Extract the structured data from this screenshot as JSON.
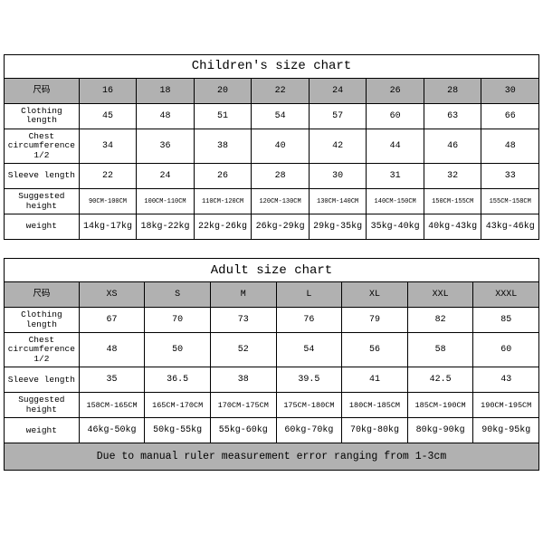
{
  "children": {
    "title": "Children's size chart",
    "row_headers": [
      "尺码",
      "Clothing length",
      "Chest circumference 1/2",
      "Sleeve length",
      "Suggested height",
      "weight"
    ],
    "sizes": [
      "16",
      "18",
      "20",
      "22",
      "24",
      "26",
      "28",
      "30"
    ],
    "clothing_length": [
      "45",
      "48",
      "51",
      "54",
      "57",
      "60",
      "63",
      "66"
    ],
    "chest": [
      "34",
      "36",
      "38",
      "40",
      "42",
      "44",
      "46",
      "48"
    ],
    "sleeve": [
      "22",
      "24",
      "26",
      "28",
      "30",
      "31",
      "32",
      "33"
    ],
    "height": [
      "90CM-100CM",
      "100CM-110CM",
      "110CM-120CM",
      "120CM-130CM",
      "130CM-140CM",
      "140CM-150CM",
      "150CM-155CM",
      "155CM-158CM"
    ],
    "weight": [
      "14kg-17kg",
      "18kg-22kg",
      "22kg-26kg",
      "26kg-29kg",
      "29kg-35kg",
      "35kg-40kg",
      "40kg-43kg",
      "43kg-46kg"
    ]
  },
  "adult": {
    "title": "Adult size chart",
    "row_headers": [
      "尺码",
      "Clothing length",
      "Chest circumference 1/2",
      "Sleeve length",
      "Suggested height",
      "weight"
    ],
    "sizes": [
      "XS",
      "S",
      "M",
      "L",
      "XL",
      "XXL",
      "XXXL"
    ],
    "clothing_length": [
      "67",
      "70",
      "73",
      "76",
      "79",
      "82",
      "85"
    ],
    "chest": [
      "48",
      "50",
      "52",
      "54",
      "56",
      "58",
      "60"
    ],
    "sleeve": [
      "35",
      "36.5",
      "38",
      "39.5",
      "41",
      "42.5",
      "43"
    ],
    "height": [
      "158CM-165CM",
      "165CM-170CM",
      "170CM-175CM",
      "175CM-180CM",
      "180CM-185CM",
      "185CM-190CM",
      "190CM-195CM"
    ],
    "weight": [
      "46kg-50kg",
      "50kg-55kg",
      "55kg-60kg",
      "60kg-70kg",
      "70kg-80kg",
      "80kg-90kg",
      "90kg-95kg"
    ],
    "footer": "Due to manual ruler measurement error ranging from 1-3cm"
  },
  "styles": {
    "header_bg": "#b1b1b1",
    "border_color": "#000000",
    "background": "#ffffff",
    "font_family": "Courier New, monospace"
  }
}
